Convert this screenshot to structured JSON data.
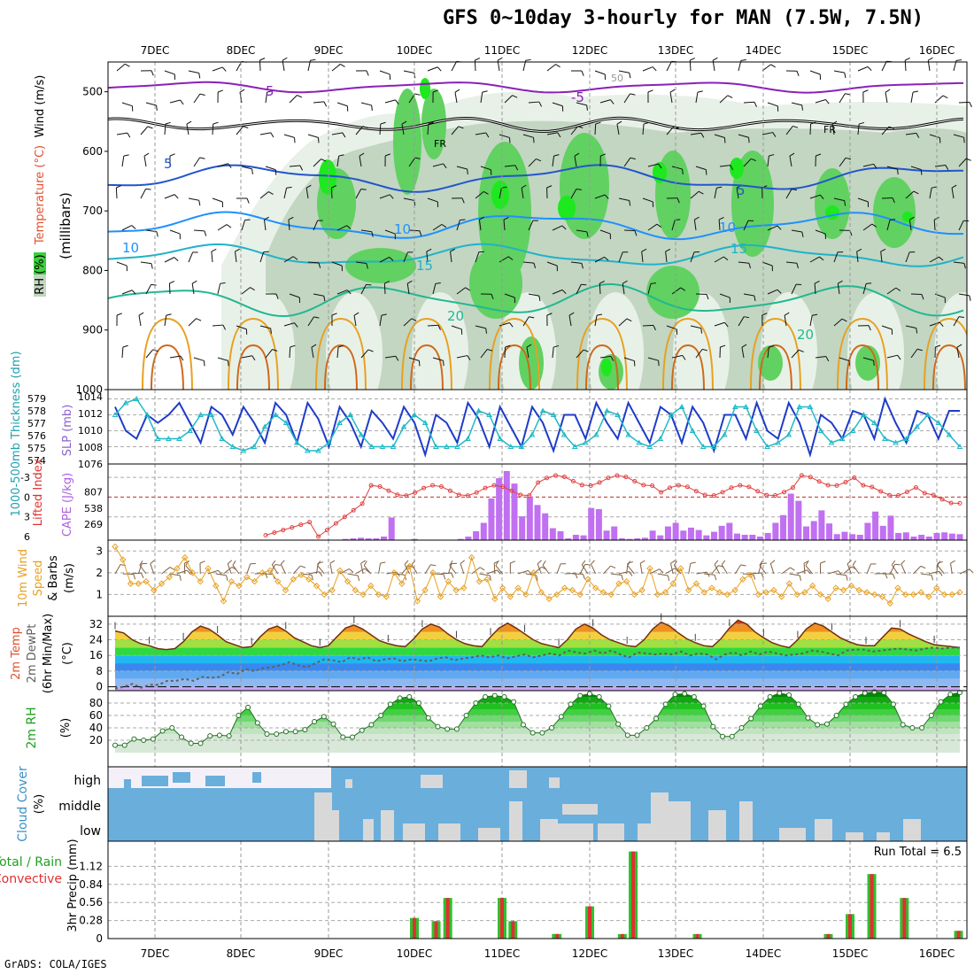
{
  "page": {
    "title": "GFS 0~10day 3-hourly for MAN (7.5W, 7.5N)",
    "footer": "GrADS: COLA/IGES"
  },
  "chart_data": [
    {
      "panel": "upper-air",
      "type": "heatmap",
      "date_labels": [
        "7DEC",
        "8DEC",
        "9DEC",
        "10DEC",
        "11DEC",
        "12DEC",
        "13DEC",
        "14DEC",
        "15DEC",
        "16DEC"
      ],
      "ylabel_parts": [
        "RH (%)",
        "Temperature (°C)",
        "Wind (m/s)",
        "(millibars)"
      ],
      "ylim": [
        1000,
        450
      ],
      "yticks": [
        "500",
        "600",
        "700",
        "800",
        "900",
        "1000"
      ],
      "contour_labels": [
        "5",
        "-5",
        "FR",
        "FR",
        "5",
        "5",
        "10",
        "10",
        "15",
        "15",
        "20",
        "20",
        "10",
        "50"
      ],
      "colors": {
        "rh_light": "#e8f1e8",
        "rh_mid": "#c2d6c2",
        "rh_green": "#61d161",
        "rh_bright": "#1ee81e",
        "t_neg5": "#8a20b8",
        "t_fr": "#000000",
        "t5": "#2255cc",
        "t10": "#1e90ff",
        "t15": "#20b2c8",
        "t20": "#20b890",
        "t25": "#e8a020",
        "t30": "#d06818"
      }
    },
    {
      "panel": "thickness-slp",
      "type": "line",
      "ylabel_left": "1000-500mb Thickness (dm)",
      "ylabel_right": "SLP (mb)",
      "yticks_left": [
        "579",
        "578",
        "577",
        "576",
        "575",
        "574"
      ],
      "yticks_right": [
        "1014",
        "1012",
        "1010",
        "1008",
        "1076"
      ],
      "series": [
        {
          "color": "#1e3cc8",
          "values": [
            1013,
            1010,
            1009,
            1012,
            1011,
            1012,
            1013.5,
            1011,
            1008.5,
            1013,
            1012,
            1009.5,
            1013,
            1011,
            1008.5,
            1013.5,
            1012,
            1008.5,
            1013.5,
            1011.5,
            1008,
            1013,
            1011,
            1008,
            1012.5,
            1011,
            1009,
            1013,
            1011,
            1007,
            1012,
            1011,
            1008.5,
            1013.5,
            1011.5,
            1008,
            1013,
            1010.5,
            1008,
            1013,
            1011,
            1007.5,
            1012,
            1012,
            1009,
            1013.5,
            1011,
            1009,
            1013.5,
            1011,
            1008.5,
            1013,
            1012,
            1008.5,
            1013,
            1011,
            1007.5,
            1012,
            1012,
            1009,
            1013.5,
            1010,
            1009,
            1013.5,
            1011,
            1007,
            1012,
            1011,
            1009,
            1012.5,
            1012,
            1009,
            1014,
            1011,
            1008.5,
            1012.5,
            1012,
            1009,
            1012.5,
            1012.5
          ]
        },
        {
          "color": "#20b8c8",
          "values": [
            1012,
            1013.5,
            1014,
            1012,
            1009,
            1009,
            1009,
            1010,
            1012,
            1012,
            1009,
            1008,
            1007.5,
            1008,
            1010.5,
            1012,
            1011,
            1008.5,
            1007.5,
            1007.5,
            1008.5,
            1011,
            1012,
            1009.5,
            1008,
            1008,
            1008,
            1010.5,
            1012,
            1011,
            1008,
            1008,
            1008,
            1009,
            1012.5,
            1012,
            1009,
            1008,
            1008,
            1009.5,
            1012.5,
            1012,
            1009.5,
            1008,
            1008.5,
            1009.5,
            1012.5,
            1012,
            1009.5,
            1008.5,
            1008,
            1009,
            1012,
            1013,
            1010,
            1008,
            1008,
            1009.5,
            1013,
            1013,
            1010,
            1008,
            1008.5,
            1009.5,
            1013,
            1013,
            1010,
            1008.5,
            1009,
            1010,
            1012,
            1011,
            1009,
            1008.5,
            1009,
            1010.5,
            1012,
            1011,
            1009.5,
            1008
          ]
        }
      ]
    },
    {
      "panel": "cape-li",
      "type": "bar",
      "ylabel_left": "Lifted Index",
      "ylabel_right": "CAPE (J/kg)",
      "yticks_left": [
        "-3",
        "0",
        "3",
        "6"
      ],
      "yticks_right": [
        "807",
        "538",
        "269"
      ],
      "cape": [
        0,
        0,
        0,
        0,
        0,
        0,
        0,
        0,
        0,
        0,
        0,
        0,
        0,
        0,
        0,
        0,
        0,
        0,
        0,
        0,
        0,
        0,
        0,
        0,
        0,
        0,
        0,
        0,
        0,
        0,
        20,
        30,
        40,
        30,
        30,
        60,
        380,
        0,
        0,
        20,
        0,
        0,
        0,
        0,
        0,
        20,
        60,
        150,
        290,
        700,
        1040,
        1160,
        950,
        400,
        730,
        590,
        450,
        200,
        150,
        30,
        90,
        80,
        540,
        520,
        160,
        230,
        30,
        20,
        30,
        40,
        160,
        80,
        230,
        290,
        160,
        210,
        170,
        80,
        140,
        240,
        290,
        110,
        90,
        90,
        60,
        120,
        290,
        420,
        780,
        660,
        230,
        320,
        500,
        280,
        100,
        140,
        100,
        90,
        290,
        480,
        240,
        410,
        120,
        130,
        60,
        90,
        60,
        120,
        130,
        110,
        100
      ]
    },
    {
      "panel": "wind10m",
      "type": "line",
      "ylabel": "10m Wind Speed & Barbs (m/s)",
      "yticks": [
        "3",
        "2",
        "1"
      ],
      "ylim": [
        0,
        3.5
      ],
      "values": [
        3.2,
        2.6,
        1.5,
        1.5,
        1.6,
        1.2,
        1.5,
        1.8,
        2.2,
        2.7,
        2.0,
        1.6,
        2.2,
        1.4,
        0.7,
        1.6,
        1.4,
        1.8,
        1.6,
        2.0,
        2.1,
        1.6,
        1.2,
        1.7,
        1.9,
        1.7,
        1.4,
        1.0,
        1.2,
        2.1,
        1.6,
        1.2,
        1.0,
        1.4,
        1.0,
        0.9,
        2.0,
        1.5,
        2.3,
        0.7,
        1.2,
        2.0,
        0.9,
        1.6,
        1.2,
        1.3,
        2.7,
        1.6,
        1.7,
        0.8,
        1.3,
        0.9,
        1.3,
        1.0,
        2.0,
        1.1,
        0.8,
        1.0,
        1.3,
        1.2,
        1.0,
        1.7,
        1.3,
        1.1,
        1.0,
        1.5,
        1.6,
        1.0,
        1.2,
        2.2,
        1.0,
        1.1,
        1.5,
        2.2,
        1.2,
        1.5,
        1.1,
        1.3,
        1.1,
        1.0,
        1.2,
        1.7,
        1.9,
        1.0,
        1.1,
        1.2,
        0.9,
        1.5,
        1.0,
        1.1,
        1.4,
        1.0,
        0.8,
        1.3,
        1.2,
        1.4,
        1.2,
        1.1,
        1.0,
        0.9,
        0.6,
        1.3,
        1.0,
        1.0,
        1.1,
        0.9,
        1.3,
        1.0,
        1.0,
        1.1
      ]
    },
    {
      "panel": "temperature",
      "type": "area",
      "ylabel": "2m Temp 2m DewPt (6hr Min/Max) (°C)",
      "yticks": [
        "32",
        "24",
        "16",
        "8",
        "0"
      ],
      "ylim": [
        -2,
        36
      ],
      "temp": [
        28.5,
        27.5,
        24,
        22,
        21,
        19.5,
        19,
        19.5,
        23,
        28,
        31,
        29.5,
        26.5,
        23,
        21.5,
        20,
        20.5,
        25.5,
        29.5,
        31,
        28.5,
        25,
        23,
        21,
        20,
        21,
        25.5,
        30,
        31.5,
        29.5,
        26.5,
        23.5,
        22,
        21,
        20.5,
        24.5,
        29.5,
        32,
        30.5,
        27,
        24,
        22,
        21,
        20.5,
        25.5,
        30,
        32.5,
        30,
        27,
        24,
        22,
        21,
        20,
        24,
        29.5,
        32,
        30,
        26.5,
        24,
        22.5,
        21,
        20.5,
        24,
        29.5,
        33,
        31,
        27.5,
        24.5,
        22.5,
        21,
        20.5,
        24.5,
        30,
        34,
        32,
        28,
        25,
        22.5,
        21,
        20,
        24,
        29.5,
        32.5,
        31,
        28,
        25,
        23,
        21.5,
        21,
        21,
        25.5,
        30,
        29.5,
        27,
        25,
        23,
        21.5,
        21,
        20.5,
        20
      ],
      "dewpt": [
        -1,
        0,
        1.5,
        -0.5,
        1,
        1,
        3,
        3,
        4,
        3,
        5,
        4.5,
        5,
        7.5,
        6.5,
        9,
        8,
        9.5,
        10,
        11,
        12.5,
        11,
        10,
        12,
        14,
        13.5,
        12.5,
        15,
        14,
        15,
        13,
        14,
        14.5,
        13,
        14,
        13.5,
        13,
        14.5,
        15,
        13.5,
        14.5,
        15,
        16,
        15,
        16,
        14.5,
        15.5,
        16.5,
        15,
        16,
        17,
        16,
        18.5,
        17.5,
        17,
        18.5,
        17,
        18.5,
        16.5,
        15,
        17.5,
        17,
        16.5,
        17,
        16.5,
        18,
        16,
        17,
        16.5,
        14,
        16.5,
        17.5,
        16,
        18,
        16.5,
        18,
        17,
        16,
        16.5,
        17,
        18.5,
        18,
        17,
        16,
        18.5,
        19,
        19,
        18,
        18.5,
        19,
        19.5,
        19,
        18.5,
        19.5,
        20,
        19.5,
        20,
        20
      ]
    },
    {
      "panel": "rh2m",
      "type": "area",
      "ylabel": "2m RH (%)",
      "yticks": [
        "80",
        "60",
        "40",
        "20"
      ],
      "ylim": [
        0,
        100
      ],
      "values": [
        12,
        12,
        22,
        20,
        22,
        35,
        40,
        25,
        15,
        15,
        27,
        28,
        27,
        60,
        73,
        48,
        30,
        30,
        34,
        34,
        37,
        50,
        58,
        46,
        25,
        25,
        36,
        45,
        60,
        78,
        88,
        90,
        80,
        56,
        42,
        38,
        38,
        60,
        80,
        90,
        92,
        90,
        82,
        45,
        32,
        32,
        40,
        58,
        78,
        92,
        95,
        90,
        75,
        46,
        28,
        28,
        40,
        55,
        78,
        94,
        95,
        90,
        75,
        42,
        26,
        26,
        40,
        55,
        75,
        90,
        96,
        93,
        78,
        56,
        45,
        46,
        60,
        78,
        90,
        96,
        98,
        97,
        78,
        45,
        40,
        40,
        60,
        82,
        94,
        97
      ]
    },
    {
      "panel": "cloud",
      "type": "heatmap",
      "ylabel": "Cloud Cover (%)",
      "row_labels": [
        "high",
        "middle",
        "low"
      ]
    },
    {
      "panel": "precip",
      "type": "bar",
      "ylabel_parts": [
        "Total / Rain",
        "Convective",
        "3hr Precip (mm)"
      ],
      "yticks": [
        "1.12",
        "0.84",
        "0.56",
        "0.28",
        "0"
      ],
      "ylim": [
        0,
        1.4
      ],
      "annotation": "Run Total = 6.5",
      "bars": [
        {
          "date": "10DEC",
          "h": 0,
          "v": 0.32
        },
        {
          "date": "10DEC",
          "h": 6,
          "v": 0.27
        },
        {
          "date": "11DEC",
          "h": -15,
          "v": 0.63
        },
        {
          "date": "11DEC",
          "h": 0,
          "v": 0.63
        },
        {
          "date": "11DEC",
          "h": 3,
          "v": 0.27
        },
        {
          "date": "11DEC",
          "h": 15,
          "v": 0.07
        },
        {
          "date": "12DEC",
          "h": -9,
          "v": 0.07
        },
        {
          "date": "12DEC",
          "h": 0,
          "v": 0.5
        },
        {
          "date": "12DEC",
          "h": 9,
          "v": 0.07
        },
        {
          "date": "12DEC",
          "h": 12,
          "v": 1.35
        },
        {
          "date": "13DEC",
          "h": 6,
          "v": 0.07
        },
        {
          "date": "15DEC",
          "h": -6,
          "v": 0.07
        },
        {
          "date": "15DEC",
          "h": 0,
          "v": 0.38
        },
        {
          "date": "15DEC",
          "h": 6,
          "v": 1.0
        },
        {
          "date": "15DEC",
          "h": 15,
          "v": 0.63
        },
        {
          "date": "16DEC",
          "h": 6,
          "v": 0.12
        }
      ]
    }
  ]
}
